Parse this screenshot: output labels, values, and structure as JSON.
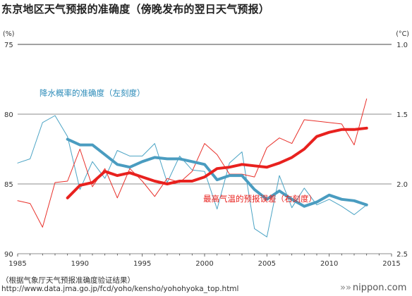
{
  "title": "东京地区天气预报的准确度（傍晚发布的翌日天气预报）",
  "source_note": "（根据气象厅天气预报准确度验证结果）",
  "source_url": "http://www.data.jma.go.jp/fcd/yoho/kensho/yohohyoka_top.html",
  "brand": {
    "arrows": "»»",
    "name": "nippon.com"
  },
  "chart_data": {
    "type": "line",
    "left_unit": "(%)",
    "right_unit": "(°C)",
    "xlim": [
      1985,
      2015
    ],
    "ylim_left": [
      75,
      90
    ],
    "ylim_right": [
      2.5,
      1.0
    ],
    "x_ticks": [
      1985,
      1990,
      1995,
      2000,
      2005,
      2010,
      2015
    ],
    "left_ticks": [
      90,
      85,
      80,
      75
    ],
    "right_ticks": [
      "1.0",
      "1.5",
      "2.0",
      "2.5"
    ],
    "right_tick_values": [
      1.0,
      1.5,
      2.0,
      2.5
    ],
    "grid": "horizontal",
    "series": [
      {
        "name": "降水概率的准确度（左刻度）",
        "axis": "left",
        "style": "thin",
        "color": "#4aa3c4",
        "x": [
          1985,
          1986,
          1987,
          1988,
          1989,
          1990,
          1991,
          1992,
          1993,
          1994,
          1995,
          1996,
          1997,
          1998,
          1999,
          2000,
          2001,
          2002,
          2003,
          2004,
          2005,
          2006,
          2007,
          2008,
          2009,
          2010,
          2011,
          2012,
          2013
        ],
        "values": [
          83.5,
          83.2,
          80.6,
          80.1,
          81.6,
          85.4,
          83.4,
          84.6,
          82.6,
          83.0,
          83.0,
          82.1,
          84.9,
          83.0,
          84.0,
          84.1,
          86.8,
          83.5,
          82.7,
          88.2,
          88.8,
          84.4,
          86.7,
          85.3,
          86.5,
          86.1,
          86.6,
          87.2,
          86.5
        ]
      },
      {
        "name": "降水概率的准确度（左刻度）",
        "axis": "left",
        "style": "thick",
        "color": "#4a9cc0",
        "x": [
          1989,
          1990,
          1991,
          1992,
          1993,
          1994,
          1995,
          1996,
          1997,
          1998,
          1999,
          2000,
          2001,
          2002,
          2003,
          2004,
          2005,
          2006,
          2007,
          2008,
          2009,
          2010,
          2011,
          2012,
          2013
        ],
        "values": [
          81.8,
          82.2,
          82.2,
          82.9,
          83.6,
          83.8,
          83.4,
          83.1,
          83.2,
          83.2,
          83.4,
          83.6,
          84.7,
          84.4,
          84.4,
          85.4,
          86.1,
          85.5,
          86.1,
          86.6,
          86.3,
          85.8,
          86.1,
          86.2,
          86.5
        ]
      },
      {
        "name": "最高气温的预报误差（右刻度）",
        "axis": "right",
        "style": "thin",
        "color": "#e8302a",
        "x": [
          1985,
          1986,
          1987,
          1988,
          1989,
          1990,
          1991,
          1992,
          1993,
          1994,
          1995,
          1996,
          1997,
          1998,
          1999,
          2000,
          2001,
          2002,
          2003,
          2004,
          2005,
          2006,
          2007,
          2008,
          2009,
          2010,
          2011,
          2012,
          2013
        ],
        "values": [
          2.12,
          2.14,
          2.31,
          1.99,
          1.98,
          1.75,
          2.02,
          1.89,
          2.1,
          1.89,
          1.98,
          2.09,
          1.96,
          1.99,
          1.91,
          1.71,
          1.79,
          1.93,
          1.93,
          1.95,
          1.74,
          1.67,
          1.71,
          1.54,
          1.55,
          1.56,
          1.57,
          1.72,
          1.39
        ]
      },
      {
        "name": "最高气温的预报误差（右刻度）",
        "axis": "right",
        "style": "thick",
        "color": "#e8211e",
        "x": [
          1989,
          1990,
          1991,
          1992,
          1993,
          1994,
          1995,
          1996,
          1997,
          1998,
          1999,
          2000,
          2001,
          2002,
          2003,
          2004,
          2005,
          2006,
          2007,
          2008,
          2009,
          2010,
          2011,
          2012,
          2013
        ],
        "values": [
          2.1,
          2.01,
          1.99,
          1.91,
          1.94,
          1.92,
          1.95,
          1.98,
          2.0,
          1.98,
          1.98,
          1.95,
          1.89,
          1.88,
          1.86,
          1.87,
          1.88,
          1.85,
          1.81,
          1.75,
          1.66,
          1.63,
          1.61,
          1.61,
          1.6
        ]
      }
    ],
    "annotations": [
      {
        "text": "降水概率的准确度（左刻度）",
        "color": "#2a8ab8"
      },
      {
        "text": "最高气温的预报误差（右刻度）",
        "color": "#e8211e"
      }
    ]
  }
}
